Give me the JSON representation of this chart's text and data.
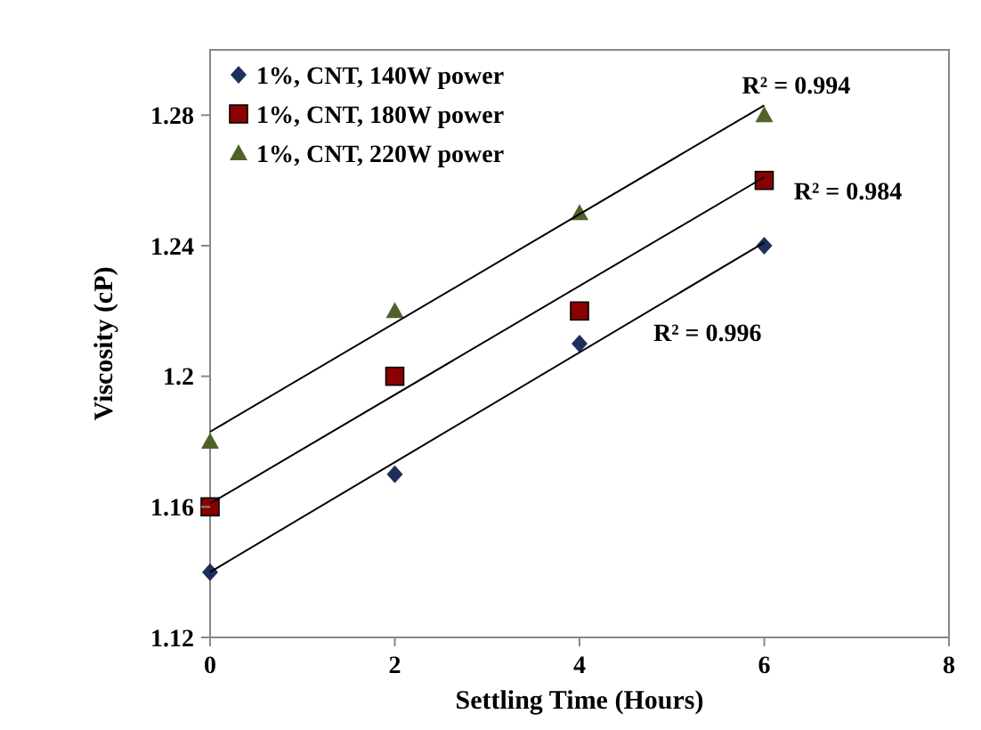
{
  "chart_data": {
    "type": "scatter",
    "xlabel": "Settling Time (Hours)",
    "ylabel": "Viscosity (cP)",
    "xlim": [
      0,
      8
    ],
    "xticks": [
      0,
      2,
      4,
      6,
      8
    ],
    "ylim": [
      1.12,
      1.3
    ],
    "yticks": [
      1.12,
      1.16,
      {
        "value": 1.2,
        "label": "1.2"
      },
      1.24,
      1.28
    ],
    "grid": false,
    "legend": "top left",
    "series": [
      {
        "name": "1%, CNT, 140W power",
        "color": "#1f2f5c",
        "marker": "diamond",
        "x": [
          0,
          2,
          4,
          6
        ],
        "values": [
          1.14,
          1.17,
          1.21,
          1.24
        ]
      },
      {
        "name": "1%, CNT, 180W power",
        "color": "#8b0000",
        "marker": "square",
        "x": [
          0,
          2,
          4,
          6
        ],
        "values": [
          1.16,
          1.2,
          1.22,
          1.26
        ]
      },
      {
        "name": "1%, CNT, 220W power",
        "color": "#4f6228",
        "marker": "triangle",
        "x": [
          0,
          2,
          4,
          6
        ],
        "values": [
          1.18,
          1.22,
          1.25,
          1.28
        ]
      },
      {
        "type": "line",
        "color": "#000000",
        "marker": "none",
        "x": [
          0,
          6
        ],
        "values": [
          1.14,
          1.241
        ]
      },
      {
        "type": "line",
        "color": "#000000",
        "marker": "none",
        "x": [
          0,
          6
        ],
        "values": [
          1.161,
          1.261
        ]
      },
      {
        "type": "line",
        "color": "#000000",
        "marker": "none",
        "x": [
          0,
          6
        ],
        "values": [
          1.183,
          1.283
        ]
      }
    ],
    "annotations": [
      "R² = 0.994",
      "R² = 0.984",
      "R² = 0.996"
    ]
  }
}
